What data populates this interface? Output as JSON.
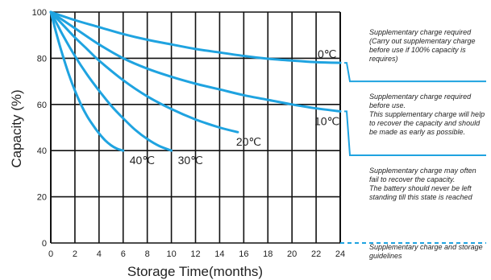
{
  "chart_data": {
    "type": "line",
    "title": "",
    "xlabel": "Storage  Time(months)",
    "ylabel": "Capacity  (%)",
    "xlim": [
      0,
      24
    ],
    "ylim": [
      0,
      100
    ],
    "x_ticks": [
      "0",
      "2",
      "4",
      "6",
      "8",
      "10",
      "12",
      "14",
      "16",
      "18",
      "20",
      "22",
      "24"
    ],
    "y_ticks": [
      "0",
      "20",
      "40",
      "60",
      "80",
      "100"
    ],
    "grid": true,
    "line_color": "#1fa3e0",
    "series": [
      {
        "name": "0℃",
        "x": [
          0,
          2,
          4,
          6,
          8,
          10,
          12,
          14,
          16,
          18,
          20,
          22,
          24
        ],
        "y": [
          100,
          96.5,
          93.5,
          90.5,
          88,
          86,
          84,
          82.5,
          81,
          79.8,
          79,
          78.3,
          78
        ]
      },
      {
        "name": "10℃",
        "x": [
          0,
          2,
          4,
          6,
          8,
          10,
          12,
          14,
          16,
          18,
          20,
          22,
          24
        ],
        "y": [
          100,
          93,
          86,
          80,
          75.5,
          72,
          69,
          66.5,
          64,
          62,
          60,
          58.3,
          57
        ]
      },
      {
        "name": "20℃",
        "x": [
          0,
          1,
          2,
          3,
          4,
          6,
          8,
          10,
          12,
          14,
          15.5
        ],
        "y": [
          100,
          94.5,
          89,
          84,
          79,
          70.5,
          63.5,
          58,
          53.5,
          50,
          48
        ]
      },
      {
        "name": "30℃",
        "x": [
          0,
          0.5,
          1,
          2,
          3,
          4,
          5,
          6,
          7,
          8,
          9,
          10
        ],
        "y": [
          100,
          95,
          90,
          81,
          73,
          66,
          59.5,
          54,
          49,
          45,
          42,
          40
        ]
      },
      {
        "name": "40℃",
        "x": [
          0,
          0.25,
          0.5,
          1,
          1.5,
          2,
          2.5,
          3,
          3.5,
          4,
          4.5,
          5,
          5.5,
          6
        ],
        "y": [
          100,
          95,
          90,
          81,
          73,
          66,
          60,
          55,
          51,
          47.5,
          44.5,
          42.3,
          40.8,
          40
        ]
      }
    ],
    "guideline": {
      "bands": [
        {
          "y_top": 78,
          "y_bottom": 70,
          "style": "solid"
        },
        {
          "y_top": 57,
          "y_bottom": 38,
          "style": "solid"
        },
        {
          "y_top": 0,
          "y_bottom": 0,
          "style": "dashed"
        }
      ],
      "notes": [
        {
          "lines": [
            "Supplementary charge required",
            "(Carry out supplementary charge",
            "before use if 100% capacity is",
            "requires)"
          ]
        },
        {
          "lines": [
            "Supplementary charge required",
            "before use.",
            "This supplementary charge will help",
            "to recover the capacity and should",
            "be made  as early as possible."
          ]
        },
        {
          "lines": [
            "Supplementary charge may often",
            "fail to recover the capacity.",
            "The battery should never be left",
            "standing till this state is reached"
          ]
        },
        {
          "lines": [
            "Supplementary charge and storage",
            "guidelines"
          ]
        }
      ]
    }
  }
}
